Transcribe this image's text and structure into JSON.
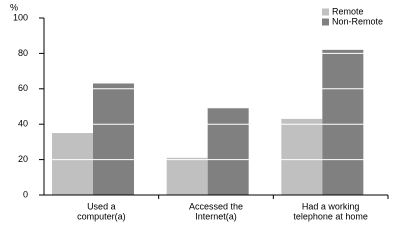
{
  "chart_data": {
    "type": "bar",
    "y_label": "%",
    "categories": [
      [
        "Used a",
        "computer(a)"
      ],
      [
        "Accessed the",
        "Internet(a)"
      ],
      [
        "Had a working",
        "telephone at home"
      ]
    ],
    "series": [
      {
        "name": "Remote",
        "color": "#c0c0c0",
        "values": [
          35,
          21,
          43
        ]
      },
      {
        "name": "Non-Remote",
        "color": "#808080",
        "values": [
          63,
          49,
          82
        ]
      }
    ],
    "ylim": [
      0,
      100
    ],
    "yticks": [
      0,
      20,
      40,
      60,
      80,
      100
    ],
    "grid": true,
    "legend": "top-right"
  }
}
